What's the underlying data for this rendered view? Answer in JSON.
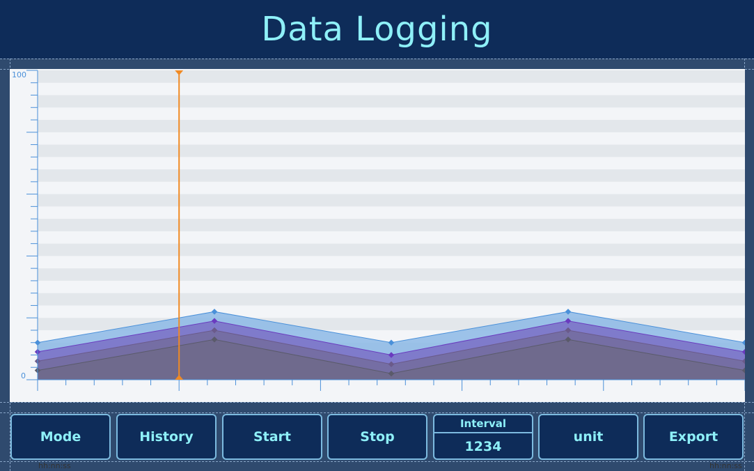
{
  "header": {
    "title": "Data Logging"
  },
  "chart_data": {
    "type": "area",
    "ylim": [
      0,
      100
    ],
    "y_tick_labels": {
      "max": "100",
      "min": "0"
    },
    "x_labels": {
      "start": "hh:nn:ss",
      "end": "hh:nn:ss"
    },
    "cursor_x": 0.2,
    "grid": true,
    "x": [
      0,
      1,
      2,
      3,
      4
    ],
    "series": [
      {
        "values": [
          12,
          22,
          12,
          22,
          12
        ],
        "color": "#4a90d9",
        "fill": "#8cb8e6"
      },
      {
        "values": [
          9,
          19,
          8,
          19,
          9
        ],
        "color": "#6a3bbf",
        "fill": "#7a6fc6"
      },
      {
        "values": [
          6,
          16,
          5,
          16,
          6
        ],
        "color": "#6a5a8a",
        "fill": "#736c9e"
      },
      {
        "values": [
          3,
          13,
          2,
          13,
          3
        ],
        "color": "#5a5a6a",
        "fill": "#6e6a8a"
      }
    ]
  },
  "buttons": {
    "mode": "Mode",
    "history": "History",
    "start": "Start",
    "stop": "Stop",
    "unit": "unit",
    "export": "Export"
  },
  "interval": {
    "label": "Interval",
    "value": "1234"
  }
}
